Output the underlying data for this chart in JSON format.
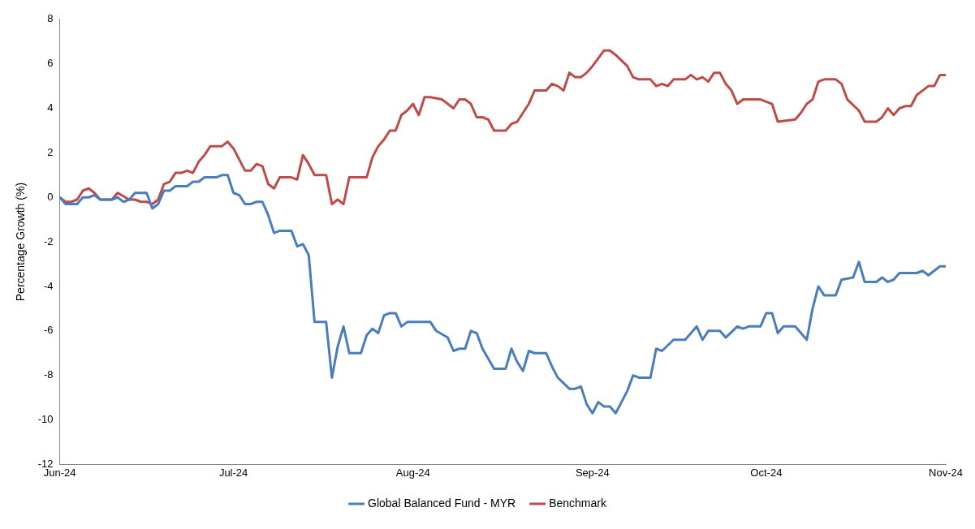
{
  "chart_data": {
    "type": "line",
    "ylabel": "Percentage Growth (%)",
    "xlim": [
      "2024-06-01",
      "2024-11-01"
    ],
    "xticks": [
      {
        "value": "2024-06-01",
        "label": "Jun-24"
      },
      {
        "value": "2024-07-01",
        "label": "Jul-24"
      },
      {
        "value": "2024-08-01",
        "label": "Aug-24"
      },
      {
        "value": "2024-09-01",
        "label": "Sep-24"
      },
      {
        "value": "2024-10-01",
        "label": "Oct-24"
      },
      {
        "value": "2024-11-01",
        "label": "Nov-24"
      }
    ],
    "ylim": [
      -12,
      8
    ],
    "yticks": [
      -12,
      -10,
      -8,
      -6,
      -4,
      -2,
      0,
      2,
      4,
      6,
      8
    ],
    "grid": false,
    "legend": "bottom",
    "marker": "none",
    "line_style": "solid",
    "series": [
      {
        "name": "Global Balanced Fund - MYR",
        "color": "#4a7ebb",
        "x": [
          "2024-06-01",
          "2024-06-02",
          "2024-06-04",
          "2024-06-05",
          "2024-06-06",
          "2024-06-07",
          "2024-06-08",
          "2024-06-10",
          "2024-06-11",
          "2024-06-12",
          "2024-06-13",
          "2024-06-14",
          "2024-06-16",
          "2024-06-17",
          "2024-06-18",
          "2024-06-19",
          "2024-06-20",
          "2024-06-21",
          "2024-06-23",
          "2024-06-24",
          "2024-06-25",
          "2024-06-26",
          "2024-06-28",
          "2024-06-29",
          "2024-06-30",
          "2024-07-01",
          "2024-07-02",
          "2024-07-03",
          "2024-07-04",
          "2024-07-05",
          "2024-07-06",
          "2024-07-07",
          "2024-07-08",
          "2024-07-09",
          "2024-07-11",
          "2024-07-12",
          "2024-07-13",
          "2024-07-14",
          "2024-07-15",
          "2024-07-17",
          "2024-07-18",
          "2024-07-19",
          "2024-07-20",
          "2024-07-21",
          "2024-07-23",
          "2024-07-24",
          "2024-07-25",
          "2024-07-26",
          "2024-07-27",
          "2024-07-28",
          "2024-07-29",
          "2024-07-30",
          "2024-07-31",
          "2024-08-02",
          "2024-08-04",
          "2024-08-05",
          "2024-08-07",
          "2024-08-08",
          "2024-08-09",
          "2024-08-10",
          "2024-08-11",
          "2024-08-12",
          "2024-08-13",
          "2024-08-15",
          "2024-08-17",
          "2024-08-18",
          "2024-08-19",
          "2024-08-20",
          "2024-08-21",
          "2024-08-22",
          "2024-08-24",
          "2024-08-25",
          "2024-08-26",
          "2024-08-28",
          "2024-08-29",
          "2024-08-30",
          "2024-08-31",
          "2024-09-01",
          "2024-09-02",
          "2024-09-03",
          "2024-09-04",
          "2024-09-05",
          "2024-09-06",
          "2024-09-07",
          "2024-09-08",
          "2024-09-09",
          "2024-09-11",
          "2024-09-12",
          "2024-09-13",
          "2024-09-15",
          "2024-09-17",
          "2024-09-19",
          "2024-09-20",
          "2024-09-21",
          "2024-09-23",
          "2024-09-24",
          "2024-09-26",
          "2024-09-27",
          "2024-09-28",
          "2024-09-30",
          "2024-10-01",
          "2024-10-02",
          "2024-10-03",
          "2024-10-04",
          "2024-10-06",
          "2024-10-08",
          "2024-10-09",
          "2024-10-10",
          "2024-10-11",
          "2024-10-13",
          "2024-10-14",
          "2024-10-16",
          "2024-10-17",
          "2024-10-18",
          "2024-10-20",
          "2024-10-21",
          "2024-10-22",
          "2024-10-23",
          "2024-10-24",
          "2024-10-27",
          "2024-10-28",
          "2024-10-29",
          "2024-10-31",
          "2024-11-01"
        ],
        "values": [
          0,
          -0.3,
          -0.3,
          0,
          0,
          0.1,
          -0.1,
          -0.1,
          0,
          -0.2,
          -0.1,
          0.2,
          0.2,
          -0.5,
          -0.3,
          0.3,
          0.3,
          0.5,
          0.5,
          0.7,
          0.7,
          0.9,
          0.9,
          1,
          1,
          0.2,
          0.1,
          -0.3,
          -0.3,
          -0.2,
          -0.2,
          -0.8,
          -1.6,
          -1.5,
          -1.5,
          -2.2,
          -2.1,
          -2.6,
          -5.6,
          -5.6,
          -8.1,
          -6.7,
          -5.8,
          -7,
          -7,
          -6.2,
          -5.9,
          -6.1,
          -5.3,
          -5.2,
          -5.2,
          -5.8,
          -5.6,
          -5.6,
          -5.6,
          -6,
          -6.3,
          -6.9,
          -6.8,
          -6.8,
          -6,
          -6.1,
          -6.8,
          -7.7,
          -7.7,
          -6.8,
          -7.4,
          -7.8,
          -6.9,
          -7,
          -7,
          -7.6,
          -8.1,
          -8.6,
          -8.6,
          -8.5,
          -9.3,
          -9.7,
          -9.2,
          -9.4,
          -9.4,
          -9.7,
          -9.2,
          -8.7,
          -8,
          -8.1,
          -8.1,
          -6.8,
          -6.9,
          -6.4,
          -6.4,
          -5.8,
          -6.4,
          -6,
          -6,
          -6.3,
          -5.8,
          -5.9,
          -5.8,
          -5.8,
          -5.2,
          -5.2,
          -6.1,
          -5.8,
          -5.8,
          -6.4,
          -5,
          -4,
          -4.4,
          -4.4,
          -3.7,
          -3.6,
          -2.9,
          -3.8,
          -3.8,
          -3.6,
          -3.8,
          -3.7,
          -3.4,
          -3.4,
          -3.3,
          -3.5,
          -3.1,
          -3.1
        ]
      },
      {
        "name": "Benchmark",
        "color": "#be4b48",
        "x": [
          "2024-06-01",
          "2024-06-02",
          "2024-06-03",
          "2024-06-04",
          "2024-06-05",
          "2024-06-06",
          "2024-06-07",
          "2024-06-08",
          "2024-06-10",
          "2024-06-11",
          "2024-06-13",
          "2024-06-14",
          "2024-06-15",
          "2024-06-16",
          "2024-06-17",
          "2024-06-18",
          "2024-06-19",
          "2024-06-20",
          "2024-06-21",
          "2024-06-22",
          "2024-06-23",
          "2024-06-24",
          "2024-06-25",
          "2024-06-26",
          "2024-06-27",
          "2024-06-29",
          "2024-06-30",
          "2024-07-01",
          "2024-07-02",
          "2024-07-03",
          "2024-07-04",
          "2024-07-05",
          "2024-07-06",
          "2024-07-07",
          "2024-07-08",
          "2024-07-09",
          "2024-07-10",
          "2024-07-11",
          "2024-07-12",
          "2024-07-13",
          "2024-07-14",
          "2024-07-15",
          "2024-07-17",
          "2024-07-18",
          "2024-07-19",
          "2024-07-20",
          "2024-07-21",
          "2024-07-23",
          "2024-07-24",
          "2024-07-25",
          "2024-07-26",
          "2024-07-27",
          "2024-07-28",
          "2024-07-29",
          "2024-07-30",
          "2024-07-31",
          "2024-08-01",
          "2024-08-02",
          "2024-08-03",
          "2024-08-04",
          "2024-08-06",
          "2024-08-07",
          "2024-08-08",
          "2024-08-09",
          "2024-08-10",
          "2024-08-11",
          "2024-08-12",
          "2024-08-13",
          "2024-08-14",
          "2024-08-15",
          "2024-08-17",
          "2024-08-18",
          "2024-08-19",
          "2024-08-20",
          "2024-08-21",
          "2024-08-22",
          "2024-08-23",
          "2024-08-24",
          "2024-08-25",
          "2024-08-26",
          "2024-08-27",
          "2024-08-28",
          "2024-08-29",
          "2024-08-30",
          "2024-08-31",
          "2024-09-01",
          "2024-09-03",
          "2024-09-04",
          "2024-09-05",
          "2024-09-07",
          "2024-09-08",
          "2024-09-09",
          "2024-09-11",
          "2024-09-12",
          "2024-09-13",
          "2024-09-14",
          "2024-09-15",
          "2024-09-17",
          "2024-09-18",
          "2024-09-19",
          "2024-09-20",
          "2024-09-21",
          "2024-09-22",
          "2024-09-23",
          "2024-09-24",
          "2024-09-25",
          "2024-09-26",
          "2024-09-27",
          "2024-09-28",
          "2024-09-30",
          "2024-10-02",
          "2024-10-03",
          "2024-10-06",
          "2024-10-07",
          "2024-10-08",
          "2024-10-09",
          "2024-10-10",
          "2024-10-11",
          "2024-10-13",
          "2024-10-14",
          "2024-10-15",
          "2024-10-17",
          "2024-10-18",
          "2024-10-20",
          "2024-10-21",
          "2024-10-22",
          "2024-10-23",
          "2024-10-24",
          "2024-10-25",
          "2024-10-26",
          "2024-10-27",
          "2024-10-28",
          "2024-10-29",
          "2024-10-30",
          "2024-10-31",
          "2024-11-01"
        ],
        "values": [
          0,
          -0.2,
          -0.2,
          -0.1,
          0.3,
          0.4,
          0.2,
          -0.1,
          -0.1,
          0.2,
          -0.1,
          -0.1,
          -0.2,
          -0.2,
          -0.3,
          -0.1,
          0.6,
          0.7,
          1.1,
          1.1,
          1.2,
          1.1,
          1.6,
          1.9,
          2.3,
          2.3,
          2.5,
          2.2,
          1.7,
          1.2,
          1.2,
          1.5,
          1.4,
          0.6,
          0.4,
          0.9,
          0.9,
          0.9,
          0.8,
          1.9,
          1.5,
          1,
          1,
          -0.3,
          -0.1,
          -0.3,
          0.9,
          0.9,
          0.9,
          1.8,
          2.3,
          2.6,
          3,
          3,
          3.7,
          3.9,
          4.2,
          3.7,
          4.5,
          4.5,
          4.4,
          4.2,
          4,
          4.4,
          4.4,
          4.2,
          3.6,
          3.6,
          3.5,
          3,
          3,
          3.3,
          3.4,
          3.8,
          4.2,
          4.8,
          4.8,
          4.8,
          5.1,
          5,
          4.8,
          5.6,
          5.4,
          5.4,
          5.6,
          5.9,
          6.6,
          6.6,
          6.4,
          5.9,
          5.4,
          5.3,
          5.3,
          5,
          5.1,
          5,
          5.3,
          5.3,
          5.5,
          5.3,
          5.4,
          5.2,
          5.6,
          5.6,
          5.1,
          4.8,
          4.2,
          4.4,
          4.4,
          4.4,
          4.2,
          3.4,
          3.5,
          3.8,
          4.2,
          4.4,
          5.2,
          5.3,
          5.3,
          5.1,
          4.4,
          3.9,
          3.4,
          3.4,
          3.6,
          4,
          3.7,
          4,
          4.1,
          4.1,
          4.6,
          4.8,
          5,
          5,
          5.5,
          5.5
        ]
      }
    ]
  }
}
